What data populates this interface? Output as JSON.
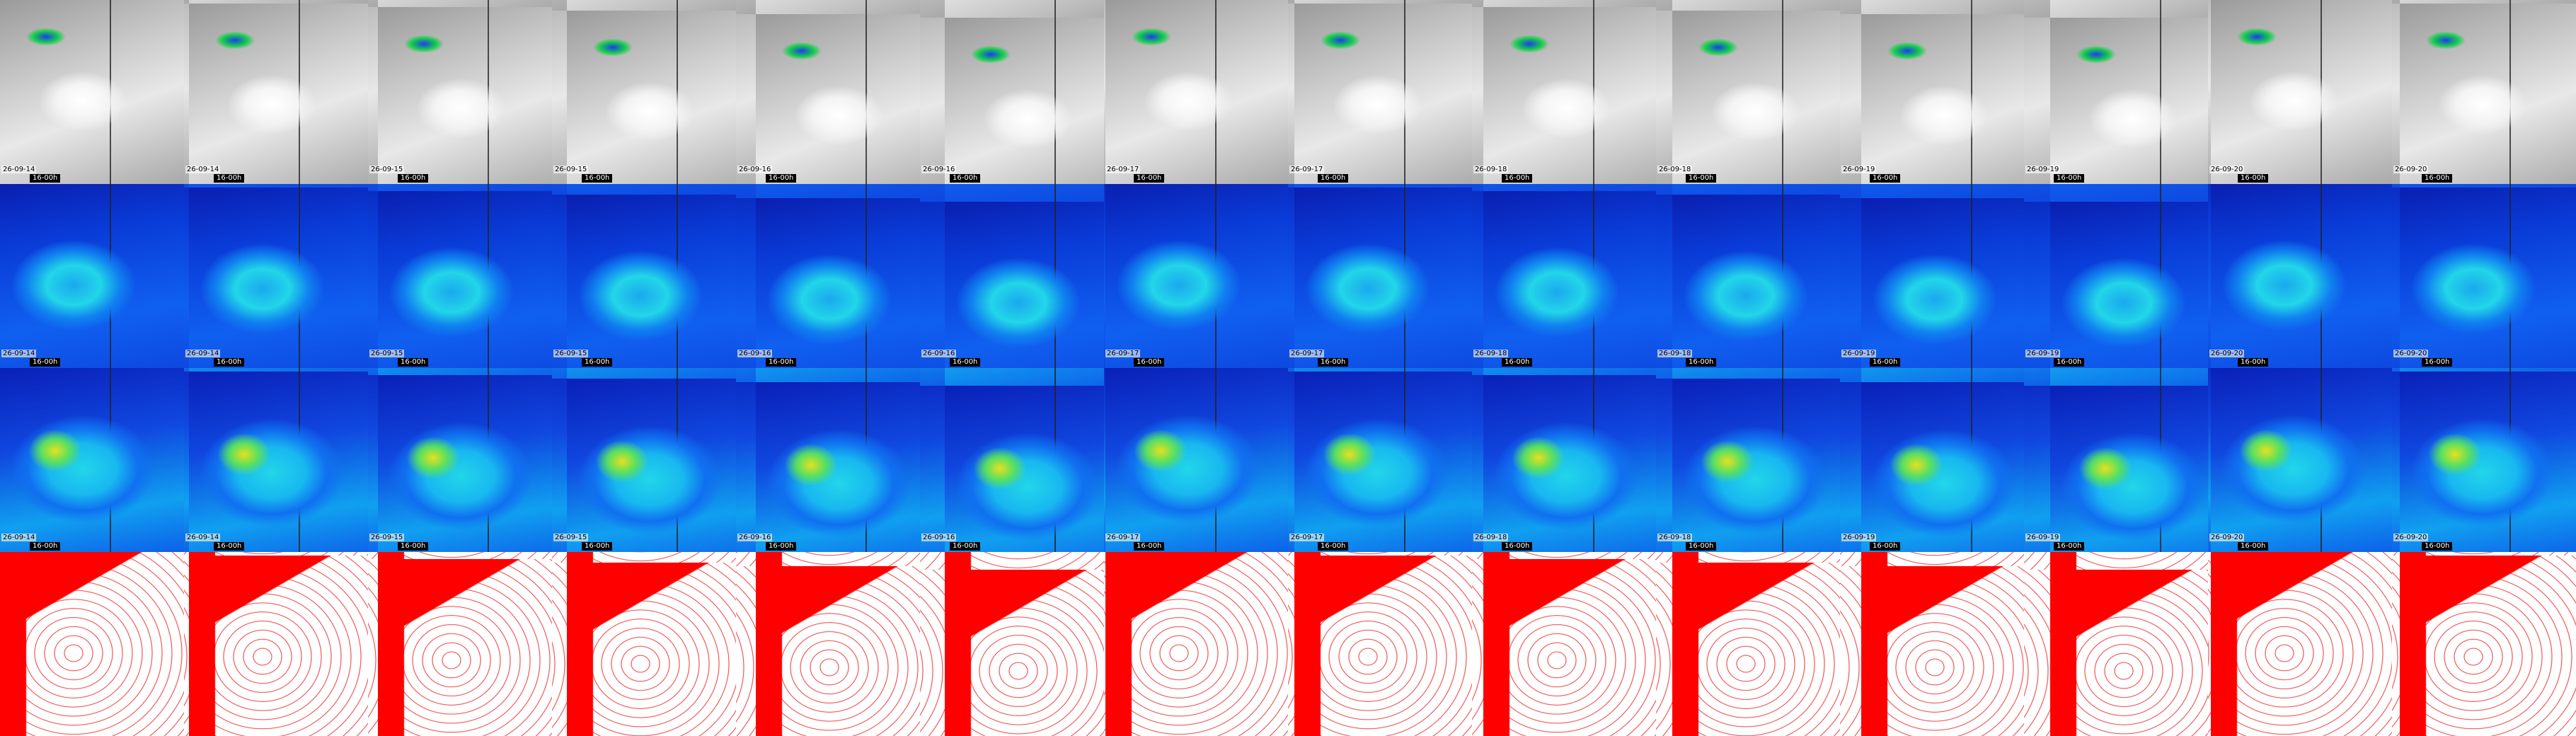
{
  "panels": [
    {
      "date": "26-09-14",
      "time": "16-00h"
    },
    {
      "date": "26-09-14",
      "time": "16-00h"
    },
    {
      "date": "26-09-15",
      "time": "16-00h"
    },
    {
      "date": "26-09-15",
      "time": "16-00h"
    },
    {
      "date": "26-09-16",
      "time": "16-00h"
    },
    {
      "date": "26-09-16",
      "time": "16-00h"
    },
    {
      "date": "26-09-17",
      "time": "16-00h"
    },
    {
      "date": "26-09-17",
      "time": "16-00h"
    },
    {
      "date": "26-09-18",
      "time": "16-00h"
    },
    {
      "date": "26-09-18",
      "time": "16-00h"
    },
    {
      "date": "26-09-19",
      "time": "16-00h"
    },
    {
      "date": "26-09-19",
      "time": "16-00h"
    },
    {
      "date": "26-09-20",
      "time": "16-00h"
    },
    {
      "date": "26-09-20",
      "time": "16-00h"
    }
  ]
}
